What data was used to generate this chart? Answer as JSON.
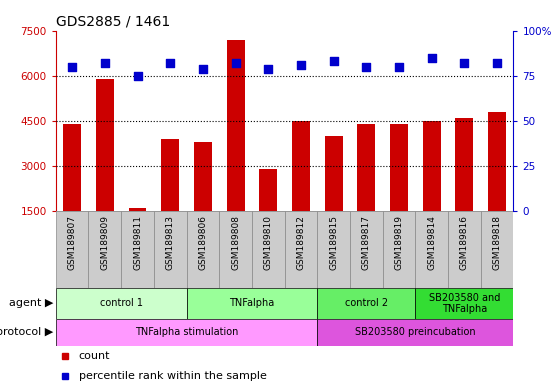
{
  "title": "GDS2885 / 1461",
  "samples": [
    "GSM189807",
    "GSM189809",
    "GSM189811",
    "GSM189813",
    "GSM189806",
    "GSM189808",
    "GSM189810",
    "GSM189812",
    "GSM189815",
    "GSM189817",
    "GSM189819",
    "GSM189814",
    "GSM189816",
    "GSM189818"
  ],
  "counts": [
    4400,
    5900,
    1600,
    3900,
    3800,
    7200,
    2900,
    4500,
    4000,
    4400,
    4400,
    4500,
    4600,
    4800
  ],
  "percentiles": [
    80,
    82,
    75,
    82,
    79,
    82,
    79,
    81,
    83,
    80,
    80,
    85,
    82,
    82
  ],
  "ylim_left": [
    1500,
    7500
  ],
  "ylim_right": [
    0,
    100
  ],
  "yticks_left": [
    1500,
    3000,
    4500,
    6000,
    7500
  ],
  "yticks_right": [
    0,
    25,
    50,
    75,
    100
  ],
  "bar_color": "#cc0000",
  "dot_color": "#0000cc",
  "agent_groups": [
    {
      "label": "control 1",
      "start": 0,
      "end": 4,
      "color": "#ccffcc"
    },
    {
      "label": "TNFalpha",
      "start": 4,
      "end": 8,
      "color": "#99ff99"
    },
    {
      "label": "control 2",
      "start": 8,
      "end": 11,
      "color": "#66ee66"
    },
    {
      "label": "SB203580 and\nTNFalpha",
      "start": 11,
      "end": 14,
      "color": "#33dd33"
    }
  ],
  "protocol_groups": [
    {
      "label": "TNFalpha stimulation",
      "start": 0,
      "end": 8,
      "color": "#ff99ff"
    },
    {
      "label": "SB203580 preincubation",
      "start": 8,
      "end": 14,
      "color": "#dd55dd"
    }
  ],
  "agent_label": "agent",
  "protocol_label": "protocol",
  "legend_count_label": "count",
  "legend_percentile_label": "percentile rank within the sample",
  "bar_width": 0.55,
  "dot_size": 40,
  "tick_label_bg": "#cccccc",
  "grid_color": "black",
  "grid_linestyle": "dotted",
  "grid_linewidth": 0.8
}
